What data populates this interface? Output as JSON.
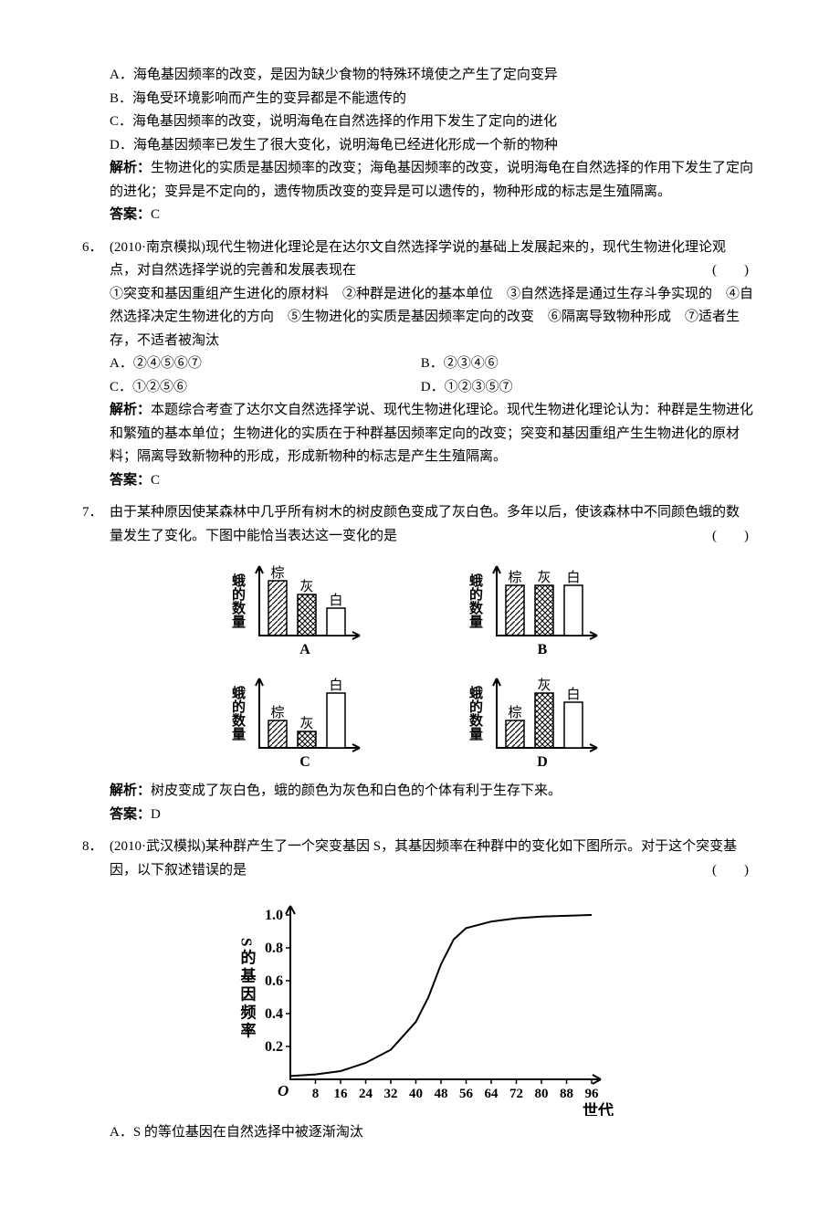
{
  "q5": {
    "optA": "A．海龟基因频率的改变，是因为缺少食物的特殊环境使之产生了定向变异",
    "optB": "B．海龟受环境影响而产生的变异都是不能遗传的",
    "optC": "C．海龟基因频率的改变，说明海龟在自然选择的作用下发生了定向的进化",
    "optD": "D．海龟基因频率已发生了很大变化，说明海龟已经进化形成一个新的物种",
    "exp_label": "解析：",
    "exp": "生物进化的实质是基因频率的改变；海龟基因频率的改变，说明海龟在自然选择的作用下发生了定向的进化；变异是不定向的，遗传物质改变的变异是可以遗传的，物种形成的标志是生殖隔离。",
    "ans_label": "答案：",
    "ans": "C"
  },
  "q6": {
    "num": "6．",
    "stem1": "(2010·南京模拟)现代生物进化理论是在达尔文自然选择学说的基础上发展起来的，现代生物进化理论观点，对自然选择学说的完善和发展表现在",
    "paren": "(　　)",
    "list": "①突变和基因重组产生进化的原材料　②种群是进化的基本单位　③自然选择是通过生存斗争实现的　④自然选择决定生物进化的方向　⑤生物进化的实质是基因频率定向的改变　⑥隔离导致物种形成　⑦适者生存，不适者被淘汰",
    "optA": "A．②④⑤⑥⑦",
    "optB": "B．②③④⑥",
    "optC": "C．①②⑤⑥",
    "optD": "D．①②③⑤⑦",
    "exp_label": "解析：",
    "exp": "本题综合考查了达尔文自然选择学说、现代生物进化理论。现代生物进化理论认为：种群是生物进化和繁殖的基本单位；生物进化的实质在于种群基因频率定向的改变；突变和基因重组产生生物进化的原材料；隔离导致新物种的形成，形成新物种的标志是产生生殖隔离。",
    "ans_label": "答案：",
    "ans": "C"
  },
  "q7": {
    "num": "7．",
    "stem": "由于某种原因使某森林中几乎所有树木的树皮颜色变成了灰白色。多年以后，使该森林中不同颜色蛾的数量发生了变化。下图中能恰当表达这一变化的是",
    "paren": "(　　)",
    "axis_y": "蛾的数量",
    "cat1": "棕",
    "cat2": "灰",
    "cat3": "白",
    "charts": {
      "A": {
        "label": "A",
        "棕": 60,
        "灰": 45,
        "白": 30,
        "colors": {
          "棕": "hatch",
          "灰": "cross",
          "白": "none"
        }
      },
      "B": {
        "label": "B",
        "棕": 55,
        "灰": 55,
        "白": 55
      },
      "C": {
        "label": "C",
        "棕": 30,
        "灰": 18,
        "白": 60
      },
      "D": {
        "label": "D",
        "棕": 30,
        "灰": 60,
        "白": 50
      }
    },
    "exp_label": "解析：",
    "exp": "树皮变成了灰白色，蛾的颜色为灰色和白色的个体有利于生存下来。",
    "ans_label": "答案：",
    "ans": "D"
  },
  "q8": {
    "num": "8．",
    "stem": "(2010·武汉模拟)某种群产生了一个突变基因 S，其基因频率在种群中的变化如下图所示。对于这个突变基因，以下叙述错误的是",
    "paren": "(　　)",
    "chart": {
      "y_label": "S的基因频率",
      "x_label": "世代",
      "x_ticks": [
        8,
        16,
        24,
        32,
        40,
        48,
        56,
        64,
        72,
        80,
        88,
        96
      ],
      "y_ticks": [
        0.2,
        0.4,
        0.6,
        0.8,
        1.0
      ],
      "origin": "O",
      "xlim": [
        0,
        96
      ],
      "ylim": [
        0,
        1.0
      ],
      "line_color": "#000000",
      "axis_color": "#000000",
      "points": [
        [
          0,
          0.02
        ],
        [
          8,
          0.03
        ],
        [
          16,
          0.05
        ],
        [
          24,
          0.1
        ],
        [
          32,
          0.18
        ],
        [
          40,
          0.35
        ],
        [
          44,
          0.5
        ],
        [
          48,
          0.7
        ],
        [
          52,
          0.85
        ],
        [
          56,
          0.92
        ],
        [
          64,
          0.96
        ],
        [
          72,
          0.98
        ],
        [
          80,
          0.99
        ],
        [
          88,
          0.995
        ],
        [
          96,
          1.0
        ]
      ]
    },
    "optA": "A．S 的等位基因在自然选择中被逐渐淘汰"
  },
  "style": {
    "font_size": 15,
    "bg": "#ffffff",
    "text": "#000000",
    "chart_stroke": "#000000"
  }
}
